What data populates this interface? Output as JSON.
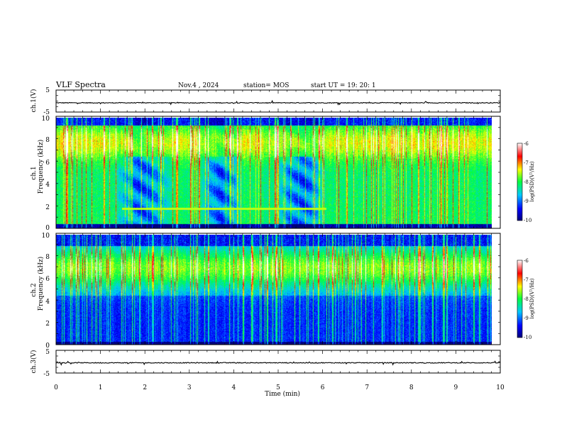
{
  "header": {
    "title": "VLF Spectra",
    "date": "Nov.4  , 2024",
    "station": "station= MOS",
    "start": "start  UT =   19: 20: 1"
  },
  "chart_data": [
    {
      "type": "line",
      "name": "ch1-waveform",
      "ylabel": "ch.1(V)",
      "ylim": [
        -5,
        5
      ],
      "y_ticks": [
        "5",
        "-5"
      ],
      "x": [
        0,
        10
      ],
      "values": [
        -0.8,
        -0.8
      ]
    },
    {
      "type": "heatmap",
      "name": "ch1-spectrogram",
      "ylabel_top": "ch.1",
      "ylabel": "Frequency (kHz)",
      "ylim": [
        0,
        10
      ],
      "y_ticks": [
        "0",
        "2",
        "4",
        "6",
        "8",
        "10"
      ],
      "xlim": [
        0,
        10
      ],
      "colorbar": {
        "label": "log(PSD)(V²/Hz)",
        "range": [
          -10,
          -6
        ],
        "ticks": [
          "-6",
          "-7",
          "-8",
          "-9",
          "-10"
        ]
      },
      "quiet_intervals_min": [
        [
          1.3,
          2.7
        ],
        [
          3.3,
          4.3
        ],
        [
          5.0,
          6.2
        ]
      ],
      "band_kHz": [
        6.5,
        9.0
      ]
    },
    {
      "type": "heatmap",
      "name": "ch2-spectrogram",
      "ylabel_top": "ch.2",
      "ylabel": "Frequency (kHz)",
      "ylim": [
        0,
        10
      ],
      "y_ticks": [
        "0",
        "2",
        "4",
        "6",
        "8",
        "10"
      ],
      "xlim": [
        0,
        10
      ],
      "colorbar": {
        "label": "log(PSD)(V²/Hz)",
        "range": [
          -10,
          -6
        ],
        "ticks": [
          "-6",
          "-7",
          "-8",
          "-9",
          "-10"
        ]
      },
      "band_kHz": [
        5.5,
        8.5
      ]
    },
    {
      "type": "line",
      "name": "ch3-waveform",
      "ylabel": "ch.3(V)",
      "ylim": [
        -5,
        5
      ],
      "y_ticks": [
        "5",
        "-5"
      ],
      "x": [
        0,
        10
      ],
      "values": [
        -0.5,
        -0.5
      ]
    }
  ],
  "x_axis": {
    "label": "Time  (min)",
    "range": [
      0,
      10
    ],
    "ticks": [
      "0",
      "1",
      "2",
      "3",
      "4",
      "5",
      "6",
      "7",
      "8",
      "9",
      "10"
    ]
  },
  "colors": {
    "frame": "#000000",
    "background": "#ffffff"
  }
}
